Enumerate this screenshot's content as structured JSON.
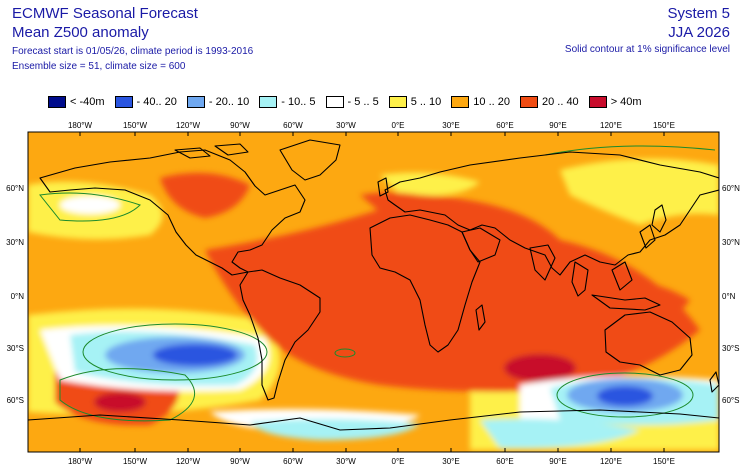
{
  "header": {
    "title": "ECMWF Seasonal Forecast",
    "subtitle": "Mean Z500 anomaly",
    "forecast_start": "Forecast start is 01/05/26, climate period is 1993-2016",
    "ensemble": "Ensemble size = 51, climate size = 600",
    "system": "System 5",
    "season": "JJA 2026",
    "contour_note": "Solid contour at 1% significance level"
  },
  "legend": [
    {
      "label": "< -40m",
      "color": "#000c8c"
    },
    {
      "label": "- 40.. 20",
      "color": "#2a55e0"
    },
    {
      "label": "- 20.. 10",
      "color": "#6fa8f0"
    },
    {
      "label": "- 10.. 5",
      "color": "#a6f2f5"
    },
    {
      "label": "- 5 .. 5",
      "color": "#ffffff"
    },
    {
      "label": "5 .. 10",
      "color": "#fef04a"
    },
    {
      "label": "10 .. 20",
      "color": "#fda811"
    },
    {
      "label": "20 .. 40",
      "color": "#f04c13"
    },
    {
      "label": "> 40m",
      "color": "#c80c2c"
    }
  ],
  "axes": {
    "lon_labels": [
      "180°W",
      "150°W",
      "120°W",
      "90°W",
      "60°W",
      "30°W",
      "0°E",
      "30°E",
      "60°E",
      "90°E",
      "120°E",
      "150°E"
    ],
    "lat_labels": [
      "60°N",
      "30°N",
      "0°N",
      "30°S",
      "60°S"
    ]
  }
}
